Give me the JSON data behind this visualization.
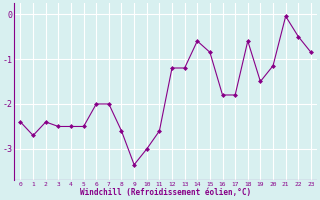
{
  "x": [
    0,
    1,
    2,
    3,
    4,
    5,
    6,
    7,
    8,
    9,
    10,
    11,
    12,
    13,
    14,
    15,
    16,
    17,
    18,
    19,
    20,
    21,
    22,
    23
  ],
  "y": [
    -2.4,
    -2.7,
    -2.4,
    -2.5,
    -2.5,
    -2.5,
    -2.0,
    -2.0,
    -2.6,
    -3.35,
    -3.0,
    -2.6,
    -1.2,
    -1.2,
    -0.6,
    -0.85,
    -1.8,
    -1.8,
    -0.6,
    -1.5,
    -1.15,
    -0.05,
    -0.5,
    -0.85
  ],
  "xlabel": "Windchill (Refroidissement éolien,°C)",
  "ylim": [
    -3.7,
    0.25
  ],
  "xlim": [
    -0.5,
    23.5
  ],
  "yticks": [
    0,
    -1,
    -2,
    -3
  ],
  "xticks": [
    0,
    1,
    2,
    3,
    4,
    5,
    6,
    7,
    8,
    9,
    10,
    11,
    12,
    13,
    14,
    15,
    16,
    17,
    18,
    19,
    20,
    21,
    22,
    23
  ],
  "line_color": "#880088",
  "marker_color": "#880088",
  "bg_color": "#d8f0f0",
  "grid_color": "#ffffff",
  "tick_label_color": "#880088",
  "xlabel_color": "#880088",
  "axis_line_color": "#880088"
}
